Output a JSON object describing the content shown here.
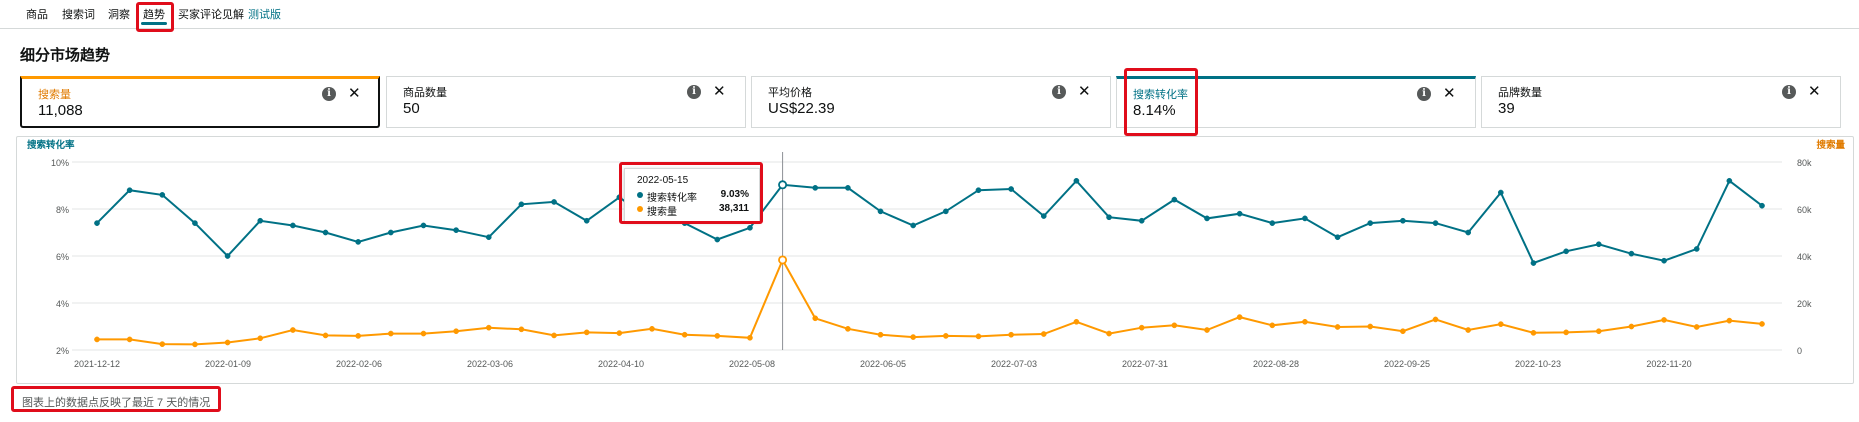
{
  "tabs": [
    "商品",
    "搜索词",
    "洞察",
    "趋势",
    "买家评论见解"
  ],
  "beta_label": "测试版",
  "page_title": "细分市场趋势",
  "cards": [
    {
      "label": "搜索量",
      "value": "11,088"
    },
    {
      "label": "商品数量",
      "value": "50"
    },
    {
      "label": "平均价格",
      "value": "US$22.39"
    },
    {
      "label": "搜索转化率",
      "value": "8.14%"
    },
    {
      "label": "品牌数量",
      "value": "39"
    }
  ],
  "icons": {
    "info": "info-icon",
    "close": "close-icon",
    "info_glyph": "i",
    "close_glyph": "✕"
  },
  "colors": {
    "teal": "#007185",
    "orange": "#ff9900",
    "highlight": "#e00d1b"
  },
  "chart_data": {
    "type": "line",
    "left_axis_label": "搜索转化率",
    "right_axis_label": "搜索量",
    "left_ticks": [
      "10%",
      "8%",
      "6%",
      "4%",
      "2%"
    ],
    "right_ticks": [
      "80k",
      "60k",
      "40k",
      "20k",
      "0"
    ],
    "x_ticks": [
      "2021-12-12",
      "2022-01-09",
      "2022-02-06",
      "2022-03-06",
      "2022-04-10",
      "2022-05-08",
      "2022-06-05",
      "2022-07-03",
      "2022-07-31",
      "2022-08-28",
      "2022-09-25",
      "2022-10-23",
      "2022-11-20"
    ],
    "y_left_range": [
      2,
      10
    ],
    "y_right_range": [
      0,
      80000
    ],
    "grid": true,
    "series": [
      {
        "name": "搜索转化率",
        "axis": "left",
        "color": "#007185",
        "values": [
          7.4,
          8.8,
          8.6,
          7.4,
          6.0,
          7.5,
          7.3,
          7.0,
          6.6,
          7.0,
          7.3,
          7.1,
          6.8,
          8.2,
          8.3,
          7.5,
          8.5,
          7.5,
          7.4,
          6.7,
          7.2,
          9.03,
          8.9,
          8.9,
          7.9,
          7.3,
          7.9,
          8.8,
          8.85,
          7.7,
          9.2,
          7.65,
          7.5,
          8.4,
          7.6,
          7.8,
          7.4,
          7.6,
          6.8,
          7.4,
          7.5,
          7.4,
          7.0,
          8.7,
          5.7,
          6.2,
          6.5,
          6.1,
          5.8,
          6.3,
          9.2,
          8.14
        ]
      },
      {
        "name": "搜索量",
        "axis": "right",
        "color": "#ff9900",
        "values": [
          4500,
          4500,
          2500,
          2400,
          3200,
          5000,
          8500,
          6200,
          6000,
          7000,
          7000,
          8000,
          9500,
          8800,
          6200,
          7500,
          7200,
          9000,
          6500,
          6000,
          5200,
          38311,
          13500,
          9000,
          6500,
          5500,
          6000,
          5800,
          6500,
          6800,
          12000,
          7000,
          9500,
          10500,
          8500,
          14000,
          10500,
          12000,
          9800,
          10000,
          8000,
          13000,
          8500,
          11000,
          7300,
          7500,
          8000,
          10000,
          12800,
          9800,
          12500,
          11088
        ]
      }
    ],
    "highlight": {
      "date": "2022-05-15",
      "index": 21,
      "rows": [
        {
          "name": "搜索转化率",
          "value": "9.03%"
        },
        {
          "name": "搜索量",
          "value": "38,311"
        }
      ]
    }
  },
  "footnote": "图表上的数据点反映了最近 7 天的情况"
}
